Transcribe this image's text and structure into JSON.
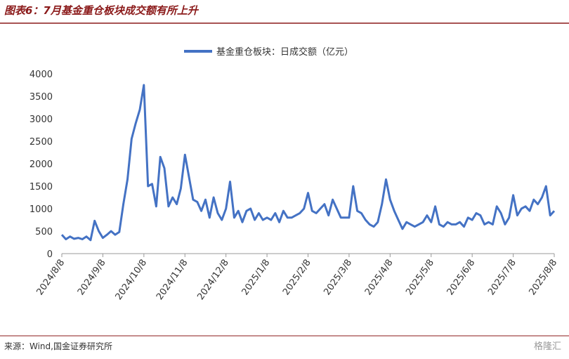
{
  "chart_data": {
    "type": "line",
    "title": "图表6：7月基金重仓板块成交额有所上升",
    "source": "来源：Wind,国金证券研究所",
    "watermark": "格隆汇",
    "categories": [
      "2024/8/8",
      null,
      null,
      null,
      null,
      null,
      null,
      null,
      null,
      null,
      "2024/9/8",
      null,
      null,
      null,
      null,
      null,
      null,
      null,
      null,
      null,
      "2024/10/8",
      null,
      null,
      null,
      null,
      null,
      null,
      null,
      null,
      null,
      "2024/11/8",
      null,
      null,
      null,
      null,
      null,
      null,
      null,
      null,
      null,
      "2024/12/8",
      null,
      null,
      null,
      null,
      null,
      null,
      null,
      null,
      null,
      "2025/1/8",
      null,
      null,
      null,
      null,
      null,
      null,
      null,
      null,
      null,
      "2025/2/8",
      null,
      null,
      null,
      null,
      null,
      null,
      null,
      null,
      null,
      "2025/3/8",
      null,
      null,
      null,
      null,
      null,
      null,
      null,
      null,
      null,
      "2025/4/8",
      null,
      null,
      null,
      null,
      null,
      null,
      null,
      null,
      null,
      "2025/5/8",
      null,
      null,
      null,
      null,
      null,
      null,
      null,
      null,
      null,
      "2025/6/8",
      null,
      null,
      null,
      null,
      null,
      null,
      null,
      null,
      null,
      "2025/7/8",
      null,
      null,
      null,
      null,
      null,
      null,
      null,
      null,
      null,
      "2025/8/8"
    ],
    "series": [
      {
        "name": "基金重仓板块：日成交额（亿元）",
        "color": "#4472c4",
        "values": [
          420,
          320,
          380,
          330,
          350,
          320,
          380,
          300,
          730,
          500,
          350,
          420,
          500,
          420,
          480,
          1100,
          1650,
          2550,
          2900,
          3200,
          3750,
          1500,
          1550,
          1050,
          2150,
          1900,
          1050,
          1250,
          1100,
          1450,
          2200,
          1700,
          1200,
          1150,
          950,
          1200,
          800,
          1250,
          900,
          750,
          1000,
          1600,
          800,
          950,
          700,
          950,
          1000,
          750,
          900,
          750,
          800,
          750,
          900,
          700,
          950,
          800,
          800,
          850,
          900,
          1000,
          1350,
          950,
          900,
          1000,
          1100,
          850,
          1200,
          1000,
          800,
          800,
          800,
          1500,
          950,
          900,
          750,
          650,
          600,
          700,
          1100,
          1650,
          1200,
          950,
          750,
          550,
          700,
          650,
          600,
          650,
          700,
          850,
          700,
          1050,
          650,
          600,
          700,
          650,
          650,
          700,
          600,
          800,
          750,
          900,
          850,
          650,
          700,
          650,
          1050,
          900,
          650,
          800,
          1300,
          850,
          1000,
          1050,
          950,
          1200,
          1100,
          1250,
          1500,
          850,
          950
        ]
      }
    ],
    "ylim": [
      0,
      4000
    ],
    "yticks": [
      0,
      500,
      1000,
      1500,
      2000,
      2500,
      3000,
      3500,
      4000
    ],
    "grid": false,
    "legend": "top"
  }
}
